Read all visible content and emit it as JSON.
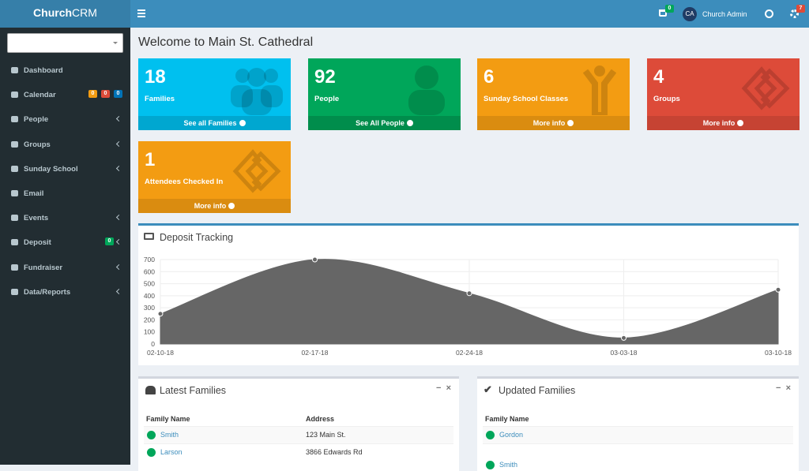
{
  "brand": {
    "bold": "Church",
    "light": "CRM"
  },
  "topbar": {
    "cart_badge": 0,
    "avatar": "CA",
    "user": "Church Admin",
    "settings_badge": 7
  },
  "sidebar": {
    "menu": [
      {
        "label": "Dashboard"
      },
      {
        "label": "Calendar",
        "badges": [
          {
            "text": 0,
            "color": "#f39c12"
          },
          {
            "text": 0,
            "color": "#dd4b39"
          },
          {
            "text": 0,
            "color": "#0073b7"
          }
        ]
      },
      {
        "label": "People",
        "submenu": true
      },
      {
        "label": "Groups",
        "submenu": true
      },
      {
        "label": "Sunday School",
        "submenu": true
      },
      {
        "label": "Email"
      },
      {
        "label": "Events",
        "submenu": true
      },
      {
        "label": "Deposit",
        "submenu": true,
        "badges": [
          {
            "text": 0,
            "color": "#00a65a"
          }
        ]
      },
      {
        "label": "Fundraiser",
        "submenu": true
      },
      {
        "label": "Data/Reports",
        "submenu": true
      }
    ]
  },
  "page_title": "Welcome to Main St. Cathedral",
  "stat_boxes": [
    {
      "value": 18,
      "label": "Families",
      "link": "See all Families",
      "color": "#00c0ef",
      "footer_color": "#00a7d0"
    },
    {
      "value": 92,
      "label": "People",
      "link": "See All People",
      "color": "#00a65a",
      "footer_color": "#008d4c"
    },
    {
      "value": 6,
      "label": "Sunday School Classes",
      "link": "More info",
      "color": "#f39c12",
      "footer_color": "#da8c10"
    },
    {
      "value": 4,
      "label": "Groups",
      "link": "More info",
      "color": "#dd4b39",
      "footer_color": "#c64333"
    },
    {
      "value": 1,
      "label": "Attendees Checked In",
      "link": "More info",
      "color": "#f39c12",
      "footer_color": "#da8c10"
    }
  ],
  "deposit_chart": {
    "type": "area",
    "title": "Deposit Tracking",
    "categories": [
      "02-10-18",
      "02-17-18",
      "02-24-18",
      "03-03-18",
      "03-10-18"
    ],
    "values": [
      250,
      700,
      420,
      50,
      450
    ],
    "color": "#666666",
    "ylim": [
      0,
      700
    ],
    "yticks": [
      0,
      100,
      200,
      300,
      400,
      500,
      600,
      700
    ],
    "grid": true
  },
  "latest_families": {
    "title": "Latest Families",
    "columns": [
      "Family Name",
      "Address"
    ],
    "rows": [
      [
        "Smith",
        "123 Main St."
      ],
      [
        "Larson",
        "3866 Edwards Rd"
      ]
    ]
  },
  "updated_families": {
    "title": "Updated Families",
    "columns": [
      "Family Name"
    ],
    "rows": [
      [
        "Gordon"
      ],
      [
        "Smith"
      ]
    ]
  }
}
